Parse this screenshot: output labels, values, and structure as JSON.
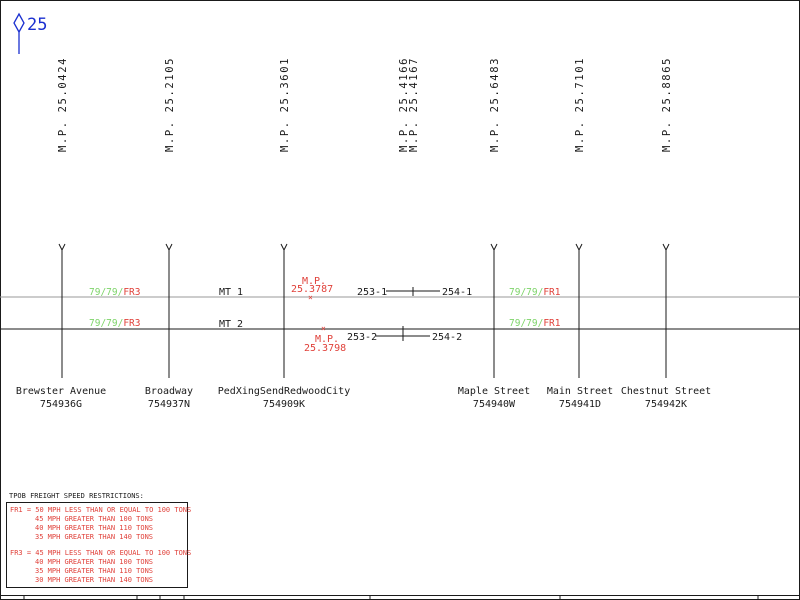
{
  "colors": {
    "ink": "#1a1a1a",
    "blue": "#1a2fd0",
    "red": "#e0413a",
    "green": "#7ed46a",
    "rule": "#9a9a9a"
  },
  "header": {
    "milepost_marker": "25"
  },
  "mileposts": [
    "M.P. 25.0424",
    "M.P. 25.2105",
    "M.P. 25.3601",
    "M.P. 25.4166",
    "M.P. 25.4167",
    "M.P. 25.6483",
    "M.P. 25.7101",
    "M.P. 25.8865"
  ],
  "tracks": {
    "mt1_label": "MT 1",
    "mt2_label": "MT 2",
    "speed_mt1_left": {
      "green": "79/79/",
      "red": "FR3"
    },
    "speed_mt2_left": {
      "green": "79/79/",
      "red": "FR3"
    },
    "speed_mt1_right": {
      "green": "79/79/",
      "red": "FR1"
    },
    "speed_mt2_right": {
      "green": "79/79/",
      "red": "FR1"
    },
    "mp_mark_1": {
      "label": "M.P.",
      "value": "25.3787"
    },
    "mp_mark_2": {
      "label": "M.P.",
      "value": "25.3798"
    },
    "signal_1_left": "253-1",
    "signal_1_right": "254-1",
    "signal_2_left": "253-2",
    "signal_2_right": "254-2"
  },
  "crossings": [
    {
      "name": "Brewster Avenue",
      "id": "754936G"
    },
    {
      "name": "Broadway",
      "id": "754937N"
    },
    {
      "name": "PedXingSendRedwoodCity",
      "id": "754909K"
    },
    {
      "name": "Maple Street",
      "id": "754940W"
    },
    {
      "name": "Main Street",
      "id": "754941D"
    },
    {
      "name": "Chestnut Street",
      "id": "754942K"
    }
  ],
  "legend": {
    "title": "TPOB FREIGHT SPEED RESTRICTIONS:",
    "lines": [
      "FR1 = 50 MPH LESS THAN OR EQUAL TO 100 TONS",
      "45 MPH GREATER THAN 100 TONS",
      "40 MPH GREATER THAN 110 TONS",
      "35 MPH GREATER THAN 140 TONS",
      "FR3 = 45 MPH LESS THAN OR EQUAL TO 100 TONS",
      "40 MPH GREATER THAN 100 TONS",
      "35 MPH GREATER THAN 110 TONS",
      "30 MPH GREATER THAN 140 TONS"
    ]
  }
}
